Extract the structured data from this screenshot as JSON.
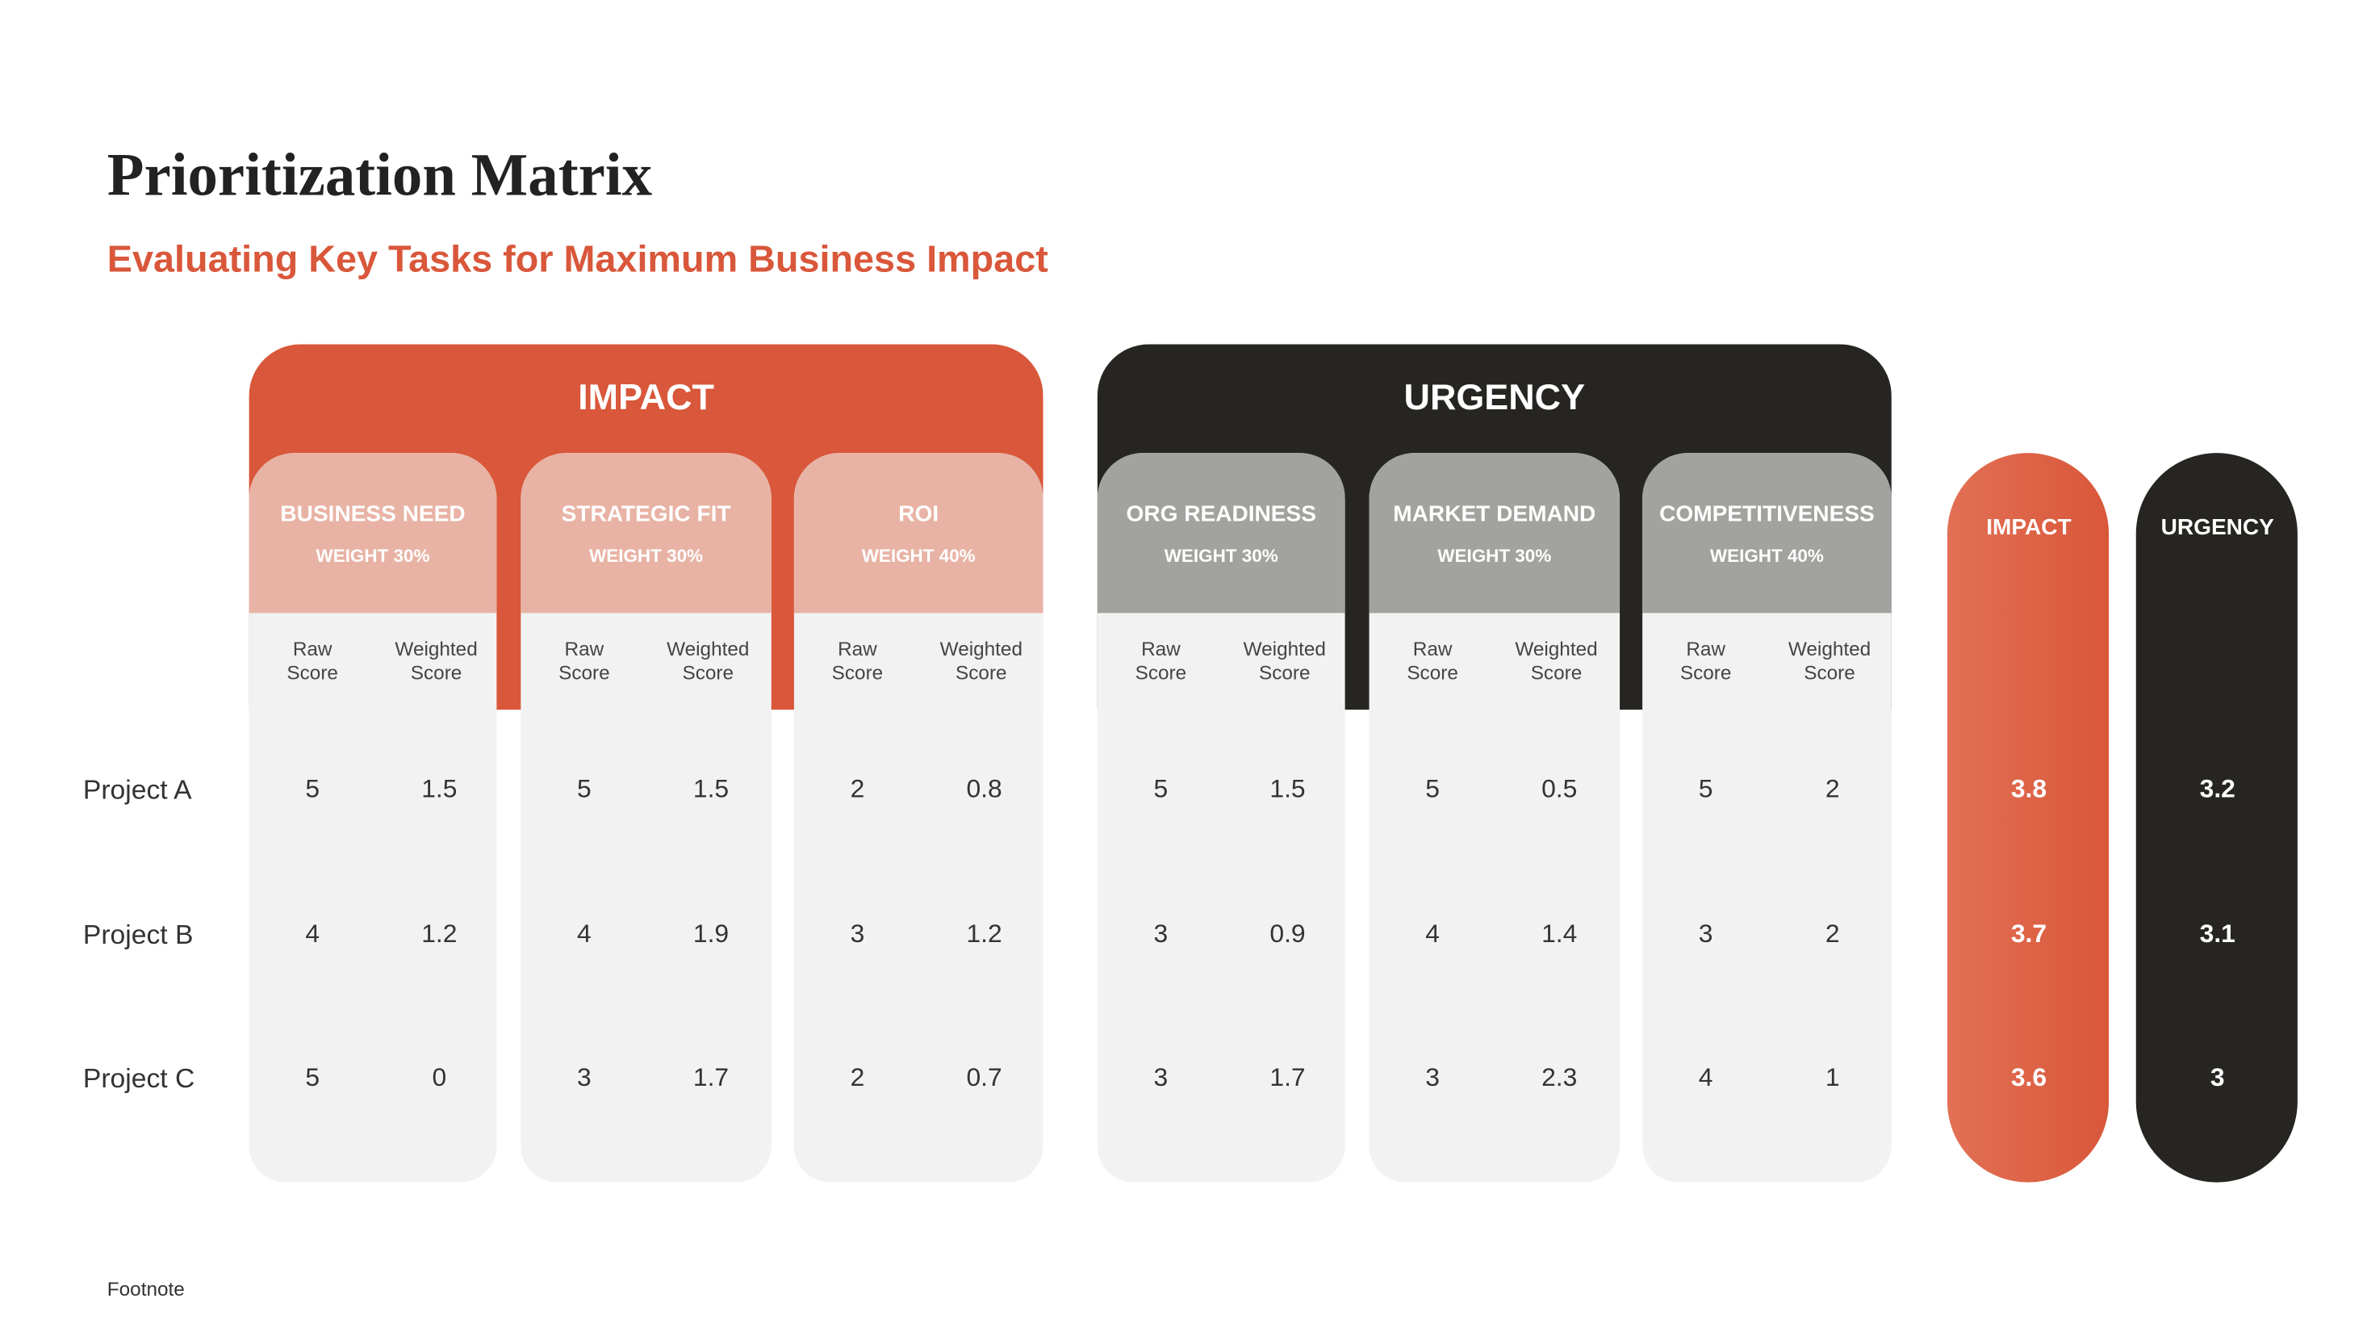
{
  "title": "Prioritization Matrix",
  "subtitle": "Evaluating Key Tasks for Maximum Business Impact",
  "groups": [
    {
      "label": "IMPACT",
      "criteria": [
        {
          "name": "BUSINESS NEED",
          "weight": "WEIGHT 30%"
        },
        {
          "name": "STRATEGIC FIT",
          "weight": "WEIGHT 30%"
        },
        {
          "name": "ROI",
          "weight": "WEIGHT 40%"
        }
      ]
    },
    {
      "label": "URGENCY",
      "criteria": [
        {
          "name": "ORG READINESS",
          "weight": "WEIGHT 30%"
        },
        {
          "name": "MARKET DEMAND",
          "weight": "WEIGHT 30%"
        },
        {
          "name": "COMPETITIVENESS",
          "weight": "WEIGHT 40%"
        }
      ]
    }
  ],
  "sub_headers": [
    [
      "Raw",
      "Score"
    ],
    [
      "Weighted",
      "Score"
    ]
  ],
  "totals": [
    "IMPACT",
    "URGENCY"
  ],
  "rows": [
    {
      "label": "Project A",
      "scores": [
        [
          5,
          1.5
        ],
        [
          5,
          1.5
        ],
        [
          2,
          0.8
        ],
        [
          5,
          1.5
        ],
        [
          5,
          0.5
        ],
        [
          5,
          2
        ]
      ],
      "totals": [
        3.8,
        3.2
      ]
    },
    {
      "label": "Project B",
      "scores": [
        [
          4,
          1.2
        ],
        [
          4,
          1.9
        ],
        [
          3,
          1.2
        ],
        [
          3,
          0.9
        ],
        [
          4,
          1.4
        ],
        [
          3,
          2
        ]
      ],
      "totals": [
        3.7,
        3.1
      ]
    },
    {
      "label": "Project C",
      "scores": [
        [
          5,
          0
        ],
        [
          3,
          1.7
        ],
        [
          2,
          0.7
        ],
        [
          3,
          1.7
        ],
        [
          3,
          2.3
        ],
        [
          4,
          1
        ]
      ],
      "totals": [
        3.6,
        3
      ]
    }
  ],
  "footnote": "Footnote"
}
